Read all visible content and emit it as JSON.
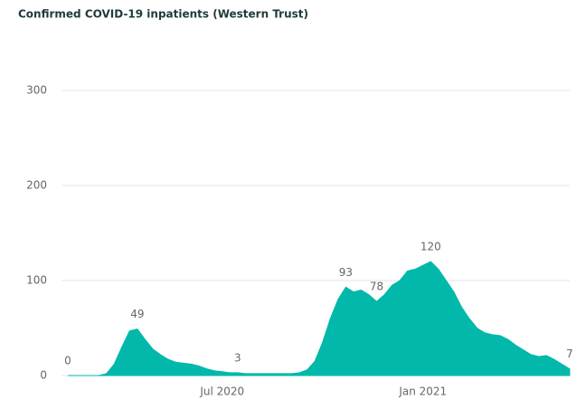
{
  "chart_data": {
    "type": "area",
    "title": "Confirmed COVID-19 inpatients (Western Trust)",
    "categories": [
      null,
      null,
      null,
      null,
      null,
      null,
      null,
      null,
      null,
      null,
      null,
      null,
      null,
      null,
      null,
      null,
      null,
      null,
      null,
      null,
      "Jul 2020",
      null,
      null,
      null,
      null,
      null,
      null,
      null,
      null,
      null,
      null,
      null,
      null,
      null,
      null,
      null,
      null,
      null,
      null,
      null,
      null,
      null,
      null,
      null,
      null,
      null,
      "Jan 2021",
      null,
      null,
      null,
      null,
      null,
      null,
      null,
      null,
      null,
      null,
      null,
      null,
      null,
      null,
      null,
      null,
      null,
      null,
      null
    ],
    "values": [
      0,
      0,
      0,
      0,
      0,
      2,
      12,
      30,
      47,
      49,
      38,
      28,
      22,
      17,
      14,
      13,
      12,
      10,
      7,
      5,
      4,
      3,
      3,
      2,
      2,
      2,
      2,
      2,
      2,
      2,
      3,
      6,
      15,
      35,
      60,
      80,
      93,
      88,
      90,
      85,
      78,
      85,
      95,
      100,
      110,
      112,
      116,
      120,
      112,
      100,
      88,
      72,
      60,
      50,
      45,
      43,
      42,
      38,
      32,
      27,
      22,
      20,
      21,
      17,
      12,
      7
    ],
    "value_labels": [
      "0",
      null,
      null,
      null,
      null,
      null,
      null,
      null,
      null,
      "49",
      null,
      null,
      null,
      null,
      null,
      null,
      null,
      null,
      null,
      null,
      null,
      null,
      "3",
      null,
      null,
      null,
      null,
      null,
      null,
      null,
      null,
      null,
      null,
      null,
      null,
      null,
      "93",
      null,
      null,
      null,
      "78",
      null,
      null,
      null,
      null,
      null,
      null,
      "120",
      null,
      null,
      null,
      null,
      null,
      null,
      null,
      null,
      null,
      null,
      null,
      null,
      null,
      null,
      null,
      null,
      null,
      "7"
    ],
    "color": "#01b8aa",
    "ylim": [
      0,
      300
    ],
    "yticks": [
      0,
      100,
      200,
      300
    ],
    "grid": true
  }
}
